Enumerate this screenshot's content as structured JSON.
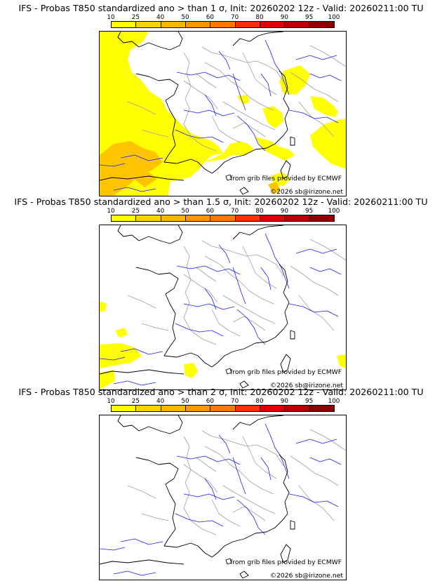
{
  "panels": [
    {
      "title": "IFS - Probas T850  standardized ano > than 1 σ, Init: 20260202 12z - Valid: 20260211:00 TU",
      "credit_source": "from grib files provided by ECMWF",
      "credit_copyright": "©2026 sb@irizone.net"
    },
    {
      "title": "IFS - Probas T850  standardized ano > than 1.5 σ, Init: 20260202 12z - Valid: 20260211:00 TU",
      "credit_source": "from grib files provided by ECMWF",
      "credit_copyright": "©2026 sb@irizone.net"
    },
    {
      "title": "IFS - Probas T850  standardized ano > than 2 σ, Init: 20260202 12z - Valid: 20260211:00 TU",
      "credit_source": "from grib files provided by ECMWF",
      "credit_copyright": "©2026 sb@irizone.net"
    }
  ],
  "colorbar": {
    "ticks": [
      "10",
      "25",
      "40",
      "50",
      "60",
      "70",
      "80",
      "90",
      "95",
      "100"
    ],
    "colors": [
      "#ffff00",
      "#ffd200",
      "#ffb400",
      "#ff9600",
      "#ff7800",
      "#ff3200",
      "#dc0000",
      "#b40000",
      "#8c0000"
    ]
  },
  "colors": {
    "prob_yellow": "#ffff00",
    "prob_orange": "#ffc400",
    "coast": "#000000",
    "rivers": "#1c1cff",
    "borders": "#a0a0a0"
  }
}
